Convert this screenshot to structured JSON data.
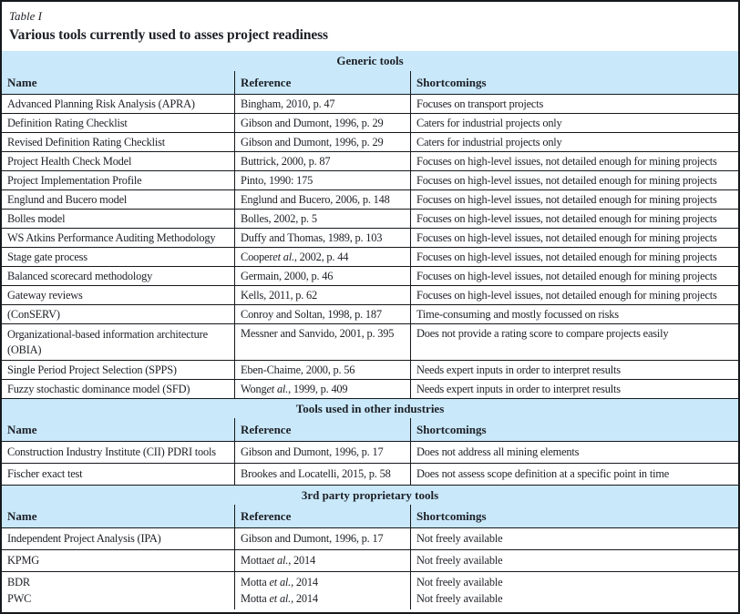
{
  "document": {
    "table_label": "Table I",
    "caption": "Various tools currently used to asses project readiness"
  },
  "columns": {
    "name": "Name",
    "reference": "Reference",
    "shortcomings": "Shortcomings"
  },
  "colors": {
    "section_band_blue": "#c9e8fa",
    "border_black": "#15181c",
    "text": "#1d2026",
    "background": "#ffffff"
  },
  "sections": [
    {
      "title": "Generic tools",
      "rows": [
        {
          "name": "Advanced Planning Risk Analysis (APRA)",
          "ref_pre": "Bingham, 2010, p. 47",
          "ref_it": "",
          "ref_post": "",
          "shortcomings": "Focuses on transport projects"
        },
        {
          "name": "Definition Rating Checklist",
          "ref_pre": "Gibson and Dumont, 1996, p. 29",
          "ref_it": "",
          "ref_post": "",
          "shortcomings": "Caters for industrial projects only"
        },
        {
          "name": "Revised Definition Rating Checklist",
          "ref_pre": "Gibson and Dumont, 1996, p. 29",
          "ref_it": "",
          "ref_post": "",
          "shortcomings": "Caters for industrial projects only"
        },
        {
          "name": "Project Health Check Model",
          "ref_pre": "Buttrick, 2000, p. 87",
          "ref_it": "",
          "ref_post": "",
          "shortcomings": "Focuses on high-level issues, not detailed enough for mining projects"
        },
        {
          "name": "Project Implementation Profile",
          "ref_pre": "Pinto, 1990: 175",
          "ref_it": "",
          "ref_post": "",
          "shortcomings": "Focuses on high-level issues, not detailed enough for mining projects"
        },
        {
          "name": "Englund and Bucero model",
          "ref_pre": "Englund and Bucero, 2006, p. 148",
          "ref_it": "",
          "ref_post": "",
          "shortcomings": "Focuses on high-level issues, not detailed enough for mining projects"
        },
        {
          "name": "Bolles model",
          "ref_pre": "Bolles, 2002, p. 5",
          "ref_it": "",
          "ref_post": "",
          "shortcomings": "Focuses on high-level issues, not detailed enough for mining projects"
        },
        {
          "name": "WS Atkins Performance Auditing Methodology",
          "ref_pre": "Duffy and Thomas, 1989, p. 103",
          "ref_it": "",
          "ref_post": "",
          "shortcomings": "Focuses on high-level issues, not detailed enough for mining projects"
        },
        {
          "name": "Stage gate process",
          "ref_pre": "Cooper ",
          "ref_it": "et al.",
          "ref_post": ", 2002, p. 44",
          "shortcomings": "Focuses on high-level issues, not detailed enough for mining projects"
        },
        {
          "name": "Balanced scorecard methodology",
          "ref_pre": "Germain, 2000, p. 46",
          "ref_it": "",
          "ref_post": "",
          "shortcomings": "Focuses on high-level issues, not detailed enough for mining projects"
        },
        {
          "name": "Gateway reviews",
          "ref_pre": "Kells, 2011, p. 62",
          "ref_it": "",
          "ref_post": "",
          "shortcomings": "Focuses on high-level issues, not detailed enough for mining projects"
        },
        {
          "name": "(ConSERV)",
          "ref_pre": "Conroy and Soltan, 1998, p. 187",
          "ref_it": "",
          "ref_post": "",
          "shortcomings": "Time-consuming and mostly focussed on risks"
        },
        {
          "name": "Organizational-based information architecture (OBIA)",
          "ref_pre": "Messner and Sanvido, 2001, p. 395",
          "ref_it": "",
          "ref_post": "",
          "shortcomings": "Does not provide a rating score to compare projects easily"
        },
        {
          "name": "Single Period Project Selection (SPPS)",
          "ref_pre": "Eben-Chaime, 2000, p. 56",
          "ref_it": "",
          "ref_post": "",
          "shortcomings": "Needs expert inputs in order to interpret results"
        },
        {
          "name": "Fuzzy stochastic dominance model (SFD)",
          "ref_pre": "Wong ",
          "ref_it": "et al.",
          "ref_post": ", 1999, p. 409",
          "shortcomings": "Needs expert inputs in order to interpret results"
        }
      ]
    },
    {
      "title": "Tools used in other industries",
      "rows": [
        {
          "name": "Construction Industry Institute (CII) PDRI tools",
          "ref_pre": "Gibson and Dumont, 1996, p. 17",
          "ref_it": "",
          "ref_post": "",
          "shortcomings": "Does not address all mining elements"
        },
        {
          "name": "Fischer exact test",
          "ref_pre": "Brookes and Locatelli, 2015, p. 58",
          "ref_it": "",
          "ref_post": "",
          "shortcomings": "Does not assess scope definition at a specific point in time"
        }
      ]
    },
    {
      "title": "3rd party proprietary tools",
      "rows": [
        {
          "name": "Independent Project Analysis (IPA)",
          "ref_pre": "Gibson and Dumont, 1996, p. 17",
          "ref_it": "",
          "ref_post": "",
          "shortcomings": "Not freely available"
        },
        {
          "name": "KPMG",
          "ref_pre": "Motta ",
          "ref_it": "et al.",
          "ref_post": ", 2014",
          "shortcomings": "Not freely available"
        },
        {
          "name": "BDR",
          "ref_pre": "Motta ",
          "ref_it": "et al.",
          "ref_post": ", 2014",
          "shortcomings": "Not freely available"
        },
        {
          "name": "PWC",
          "ref_pre": "Motta ",
          "ref_it": "et al.",
          "ref_post": ", 2014",
          "shortcomings": "Not freely available"
        }
      ]
    }
  ]
}
